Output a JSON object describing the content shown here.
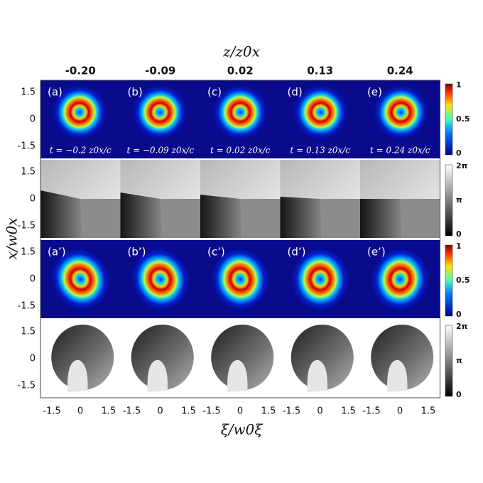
{
  "top_axis_label": "z/z0x",
  "column_headers": [
    "-0.20",
    "-0.09",
    "0.02",
    "0.13",
    "0.24"
  ],
  "y_axis_label": "x/w0x",
  "x_axis_label": "ξ/w0ξ",
  "panel_labels_intensity": [
    "(a)",
    "(b)",
    "(c)",
    "(d)",
    "(e)"
  ],
  "panel_labels_reconstructed": [
    "(a’)",
    "(b’)",
    "(c’)",
    "(d’)",
    "(e’)"
  ],
  "time_labels": [
    "t = −0.2 z0x/c",
    "t = −0.09 z0x/c",
    "t = 0.02 z0x/c",
    "t = 0.13 z0x/c",
    "t = 0.24 z0x/c"
  ],
  "y_ticks": [
    "1.5",
    "0",
    "-1.5"
  ],
  "x_ticks": [
    "-1.5",
    "0",
    "1.5"
  ],
  "intensity_colorbar_ticks": [
    "1",
    "0.5",
    "0"
  ],
  "phase_colorbar_ticks": [
    "2π",
    "π",
    "0"
  ]
}
